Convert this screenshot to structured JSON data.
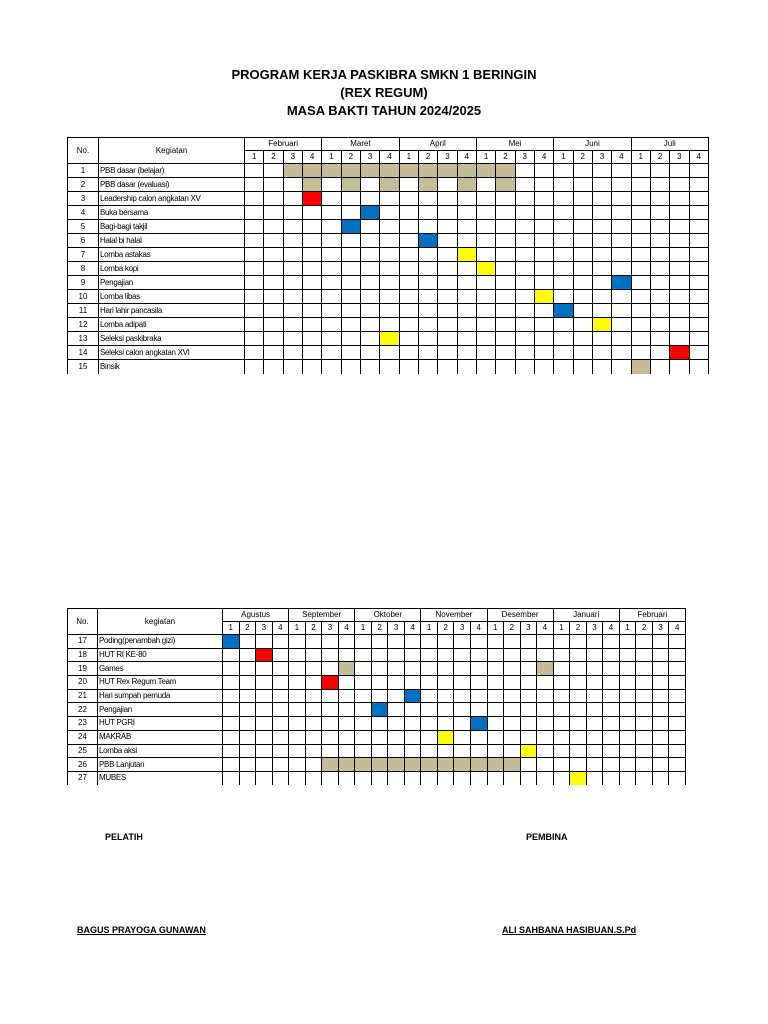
{
  "title": {
    "line1": "PROGRAM KERJA PASKIBRA SMKN 1 BERINGIN",
    "line2": "(REX REGUM)",
    "line3": "MASA BAKTI TAHUN 2024/2025"
  },
  "colors": {
    "tan": "#c4bd97",
    "blue": "#0070c0",
    "red": "#ff0000",
    "yellow": "#ffff00"
  },
  "tables": [
    {
      "no_header": "No.",
      "activity_header": "Kegiatan",
      "months": [
        "Februari",
        "Maret",
        "April",
        "Mei",
        "Juni",
        "Juli"
      ],
      "weeks": [
        "1",
        "2",
        "3",
        "4"
      ],
      "rows": [
        {
          "no": "1",
          "activity": "PBB dasar (belajar)",
          "marks": {
            "tan": [
              2,
              3,
              4,
              5,
              6,
              7,
              8,
              9,
              10,
              11,
              12,
              13
            ]
          }
        },
        {
          "no": "2",
          "activity": "PBB dasar (evaluasi)",
          "marks": {
            "tan": [
              3,
              5,
              7,
              9,
              11,
              13
            ]
          }
        },
        {
          "no": "3",
          "activity": "Leadership calon angkatan XV",
          "marks": {
            "red": [
              3
            ]
          }
        },
        {
          "no": "4",
          "activity": "Buka bersama",
          "marks": {
            "blue": [
              6
            ]
          }
        },
        {
          "no": "5",
          "activity": "Bagi-bagi takjil",
          "marks": {
            "blue": [
              5
            ]
          }
        },
        {
          "no": "6",
          "activity": "Halal bi halal",
          "marks": {
            "blue": [
              9
            ]
          }
        },
        {
          "no": "7",
          "activity": "Lomba astakas",
          "marks": {
            "yellow": [
              11
            ]
          }
        },
        {
          "no": "8",
          "activity": "Lomba kopi",
          "marks": {
            "yellow": [
              12
            ]
          }
        },
        {
          "no": "9",
          "activity": "Pengajian",
          "marks": {
            "blue": [
              19
            ]
          }
        },
        {
          "no": "10",
          "activity": "Lomba libas",
          "marks": {
            "yellow": [
              15
            ]
          }
        },
        {
          "no": "11",
          "activity": "Hari lahir pancasila",
          "marks": {
            "blue": [
              16
            ]
          }
        },
        {
          "no": "12",
          "activity": "Lomba adipati",
          "marks": {
            "yellow": [
              18
            ]
          }
        },
        {
          "no": "13",
          "activity": "Seleksi paskibraka",
          "marks": {
            "yellow": [
              7
            ]
          }
        },
        {
          "no": "14",
          "activity": "Seleksi calon angkatan XVI",
          "marks": {
            "red": [
              22
            ]
          }
        },
        {
          "no": "15",
          "activity": "Binsik",
          "marks": {
            "tan": [
              20
            ]
          }
        }
      ]
    },
    {
      "no_header": "No.",
      "activity_header": "kegiatan",
      "months": [
        "Agustus",
        "September",
        "Oktober",
        "November",
        "Desember",
        "Januari",
        "Februari"
      ],
      "weeks": [
        "1",
        "2",
        "3",
        "4"
      ],
      "rows": [
        {
          "no": "17",
          "activity": "Poding(penambah gizi)",
          "marks": {
            "blue": [
              0
            ]
          }
        },
        {
          "no": "18",
          "activity": "HUT RI KE-80",
          "marks": {
            "red": [
              2
            ]
          }
        },
        {
          "no": "19",
          "activity": "Games",
          "marks": {
            "tan": [
              7,
              19
            ]
          }
        },
        {
          "no": "20",
          "activity": "HUT Rex Regum Team",
          "marks": {
            "red": [
              6
            ]
          }
        },
        {
          "no": "21",
          "activity": "Hari sumpah pemuda",
          "marks": {
            "blue": [
              11
            ]
          }
        },
        {
          "no": "22",
          "activity": "Pengajian",
          "marks": {
            "blue": [
              9
            ]
          }
        },
        {
          "no": "23",
          "activity": "HUT PGRI",
          "marks": {
            "blue": [
              15
            ]
          }
        },
        {
          "no": "24",
          "activity": "MAKRAB",
          "marks": {
            "yellow": [
              13
            ]
          }
        },
        {
          "no": "25",
          "activity": "Lomba aksi",
          "marks": {
            "yellow": [
              18
            ]
          }
        },
        {
          "no": "26",
          "activity": "PBB Lanjutan",
          "marks": {
            "tan": [
              6,
              7,
              8,
              9,
              10,
              11,
              12,
              13,
              14,
              15,
              16,
              17
            ]
          }
        },
        {
          "no": "27",
          "activity": "MUBES",
          "marks": {
            "yellow": [
              21
            ]
          }
        }
      ]
    }
  ],
  "signatures": {
    "left_role": "PELATIH",
    "right_role": "PEMBINA",
    "left_name": "BAGUS PRAYOGA GUNAWAN",
    "right_name": "ALI SAHBANA HASIBUAN.S.Pd"
  }
}
